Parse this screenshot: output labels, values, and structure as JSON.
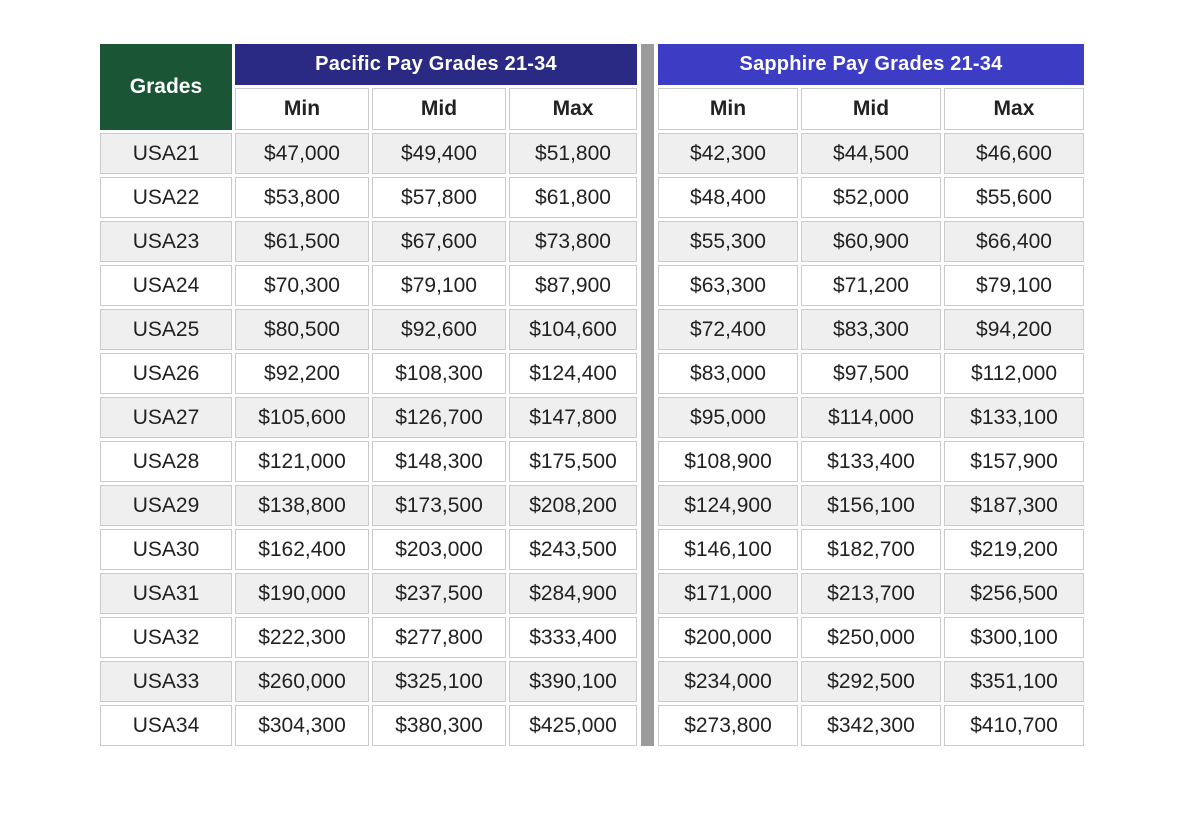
{
  "page_background": "#FFFFFF",
  "colors": {
    "grades_header_bg": "#1A5635",
    "pacific_banner_bg": "#2A2A84",
    "sapphire_banner_bg": "#3C3CC4",
    "divider": "#9B9B9B",
    "row_bg": "#FFFFFF",
    "row_alt_bg": "#EFEFEF",
    "cell_border": "#CBCBCB",
    "header_text": "#FFFFFF",
    "data_text": "#222222"
  },
  "grades_column_header": "Grades",
  "chart_data": [
    {
      "type": "table",
      "title": "Pacific Pay Grades 21-34",
      "columns": [
        "Grades",
        "Min",
        "Mid",
        "Max"
      ],
      "rows": [
        [
          "USA21",
          "$47,000",
          "$49,400",
          "$51,800"
        ],
        [
          "USA22",
          "$53,800",
          "$57,800",
          "$61,800"
        ],
        [
          "USA23",
          "$61,500",
          "$67,600",
          "$73,800"
        ],
        [
          "USA24",
          "$70,300",
          "$79,100",
          "$87,900"
        ],
        [
          "USA25",
          "$80,500",
          "$92,600",
          "$104,600"
        ],
        [
          "USA26",
          "$92,200",
          "$108,300",
          "$124,400"
        ],
        [
          "USA27",
          "$105,600",
          "$126,700",
          "$147,800"
        ],
        [
          "USA28",
          "$121,000",
          "$148,300",
          "$175,500"
        ],
        [
          "USA29",
          "$138,800",
          "$173,500",
          "$208,200"
        ],
        [
          "USA30",
          "$162,400",
          "$203,000",
          "$243,500"
        ],
        [
          "USA31",
          "$190,000",
          "$237,500",
          "$284,900"
        ],
        [
          "USA32",
          "$222,300",
          "$277,800",
          "$333,400"
        ],
        [
          "USA33",
          "$260,000",
          "$325,100",
          "$390,100"
        ],
        [
          "USA34",
          "$304,300",
          "$380,300",
          "$425,000"
        ]
      ]
    },
    {
      "type": "table",
      "title": "Sapphire Pay Grades 21-34",
      "columns": [
        "Min",
        "Mid",
        "Max"
      ],
      "rows": [
        [
          "$42,300",
          "$44,500",
          "$46,600"
        ],
        [
          "$48,400",
          "$52,000",
          "$55,600"
        ],
        [
          "$55,300",
          "$60,900",
          "$66,400"
        ],
        [
          "$63,300",
          "$71,200",
          "$79,100"
        ],
        [
          "$72,400",
          "$83,300",
          "$94,200"
        ],
        [
          "$83,000",
          "$97,500",
          "$112,000"
        ],
        [
          "$95,000",
          "$114,000",
          "$133,100"
        ],
        [
          "$108,900",
          "$133,400",
          "$157,900"
        ],
        [
          "$124,900",
          "$156,100",
          "$187,300"
        ],
        [
          "$146,100",
          "$182,700",
          "$219,200"
        ],
        [
          "$171,000",
          "$213,700",
          "$256,500"
        ],
        [
          "$200,000",
          "$250,000",
          "$300,100"
        ],
        [
          "$234,000",
          "$292,500",
          "$351,100"
        ],
        [
          "$273,800",
          "$342,300",
          "$410,700"
        ]
      ]
    }
  ]
}
